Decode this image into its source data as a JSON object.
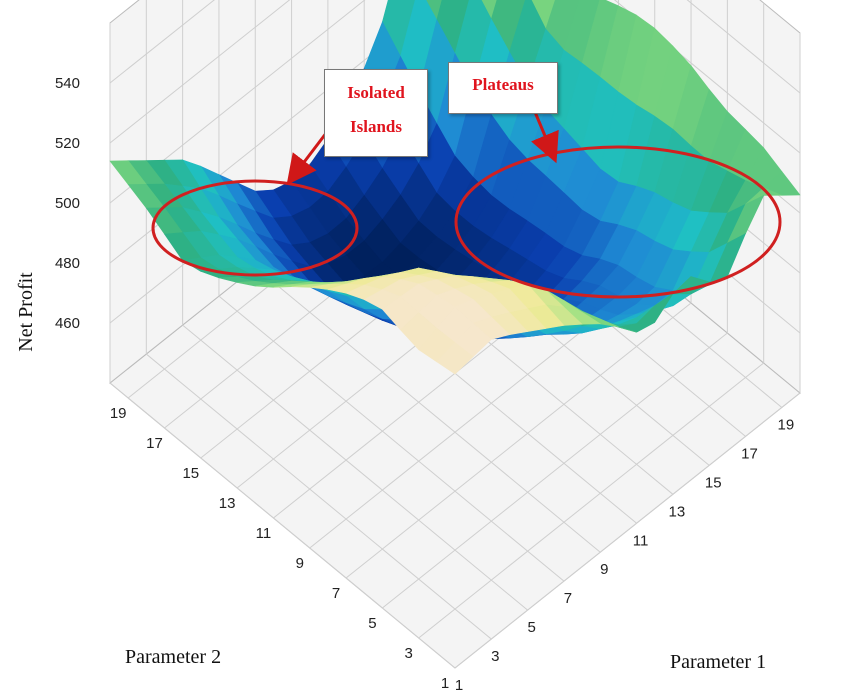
{
  "chart_data": {
    "type": "surface",
    "zlabel": "Net Profit",
    "xlabel": "Parameter 1",
    "ylabel": "Parameter 2",
    "x_ticks": [
      1,
      3,
      5,
      7,
      9,
      11,
      13,
      15,
      17,
      19
    ],
    "y_ticks": [
      1,
      3,
      5,
      7,
      9,
      11,
      13,
      15,
      17,
      19
    ],
    "z_ticks": [
      460,
      480,
      500,
      520,
      540
    ],
    "zlim": [
      440,
      550
    ],
    "grid": true,
    "colormap": [
      "#00205c",
      "#0a3fb0",
      "#1f8ad4",
      "#1fc0c4",
      "#2fb080",
      "#8fdf7f",
      "#efea98",
      "#f8e6d8"
    ],
    "z_samples": [
      [
        538,
        540,
        532,
        524,
        514,
        500,
        510,
        496,
        516,
        506
      ],
      [
        536,
        541,
        535,
        528,
        510,
        492,
        486,
        480,
        498,
        512
      ],
      [
        540,
        538,
        530,
        518,
        496,
        478,
        474,
        472,
        488,
        514
      ],
      [
        534,
        529,
        522,
        504,
        482,
        466,
        468,
        470,
        484,
        520
      ],
      [
        525,
        516,
        504,
        488,
        468,
        456,
        458,
        462,
        476,
        522
      ],
      [
        514,
        506,
        494,
        474,
        458,
        452,
        454,
        460,
        480,
        518
      ],
      [
        506,
        496,
        486,
        468,
        452,
        448,
        451,
        457,
        484,
        512
      ],
      [
        500,
        492,
        480,
        464,
        450,
        446,
        449,
        458,
        496,
        530
      ],
      [
        508,
        498,
        484,
        468,
        454,
        450,
        456,
        470,
        510,
        540
      ],
      [
        514,
        504,
        494,
        478,
        462,
        458,
        466,
        484,
        522,
        538
      ]
    ]
  },
  "annotations": [
    {
      "id": "isolated-islands",
      "lines": [
        "Isolated",
        "Islands"
      ]
    },
    {
      "id": "plateaus",
      "lines": [
        "Plateaus"
      ]
    }
  ],
  "colors": {
    "annotation": "#e0141e",
    "ellipse": "#d02020",
    "grid": "#cfcfcf",
    "pane": "#f4f4f4"
  }
}
